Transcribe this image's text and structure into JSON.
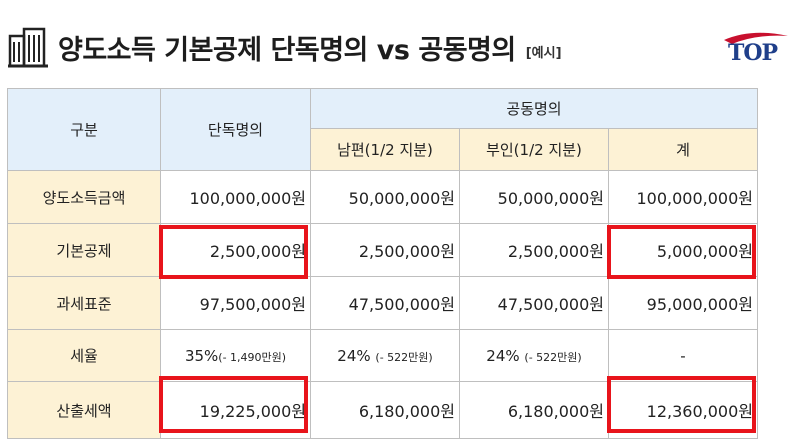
{
  "header": {
    "title": "양도소득 기본공제 단독명의 vs 공동명의",
    "tag": "[예시]",
    "logo_text": "TOP",
    "icon": "building-icon"
  },
  "table": {
    "col_gubun": "구분",
    "col_single": "단독명의",
    "col_joint": "공동명의",
    "col_husband": "남편(1/2 지분)",
    "col_wife": "부인(1/2 지분)",
    "col_total": "계",
    "rows": [
      {
        "label": "양도소득금액",
        "single": "100,000,000원",
        "husband": "50,000,000원",
        "wife": "50,000,000원",
        "total": "100,000,000원"
      },
      {
        "label": "기본공제",
        "single": "2,500,000원",
        "husband": "2,500,000원",
        "wife": "2,500,000원",
        "total": "5,000,000원"
      },
      {
        "label": "과세표준",
        "single": "97,500,000원",
        "husband": "47,500,000원",
        "wife": "47,500,000원",
        "total": "95,000,000원"
      },
      {
        "label": "세율",
        "single": "35%",
        "single_note": "(- 1,490만원)",
        "husband": "24%",
        "husband_note": "(- 522만원)",
        "wife": "24%",
        "wife_note": "(- 522만원)",
        "total": "-"
      },
      {
        "label": "산출세액",
        "single": "19,225,000원",
        "husband": "6,180,000원",
        "wife": "6,180,000원",
        "total": "12,360,000원"
      }
    ]
  },
  "colors": {
    "highlight": "#e8141b",
    "header_blue": "#e3effa",
    "header_yellow": "#fdf2d5"
  }
}
